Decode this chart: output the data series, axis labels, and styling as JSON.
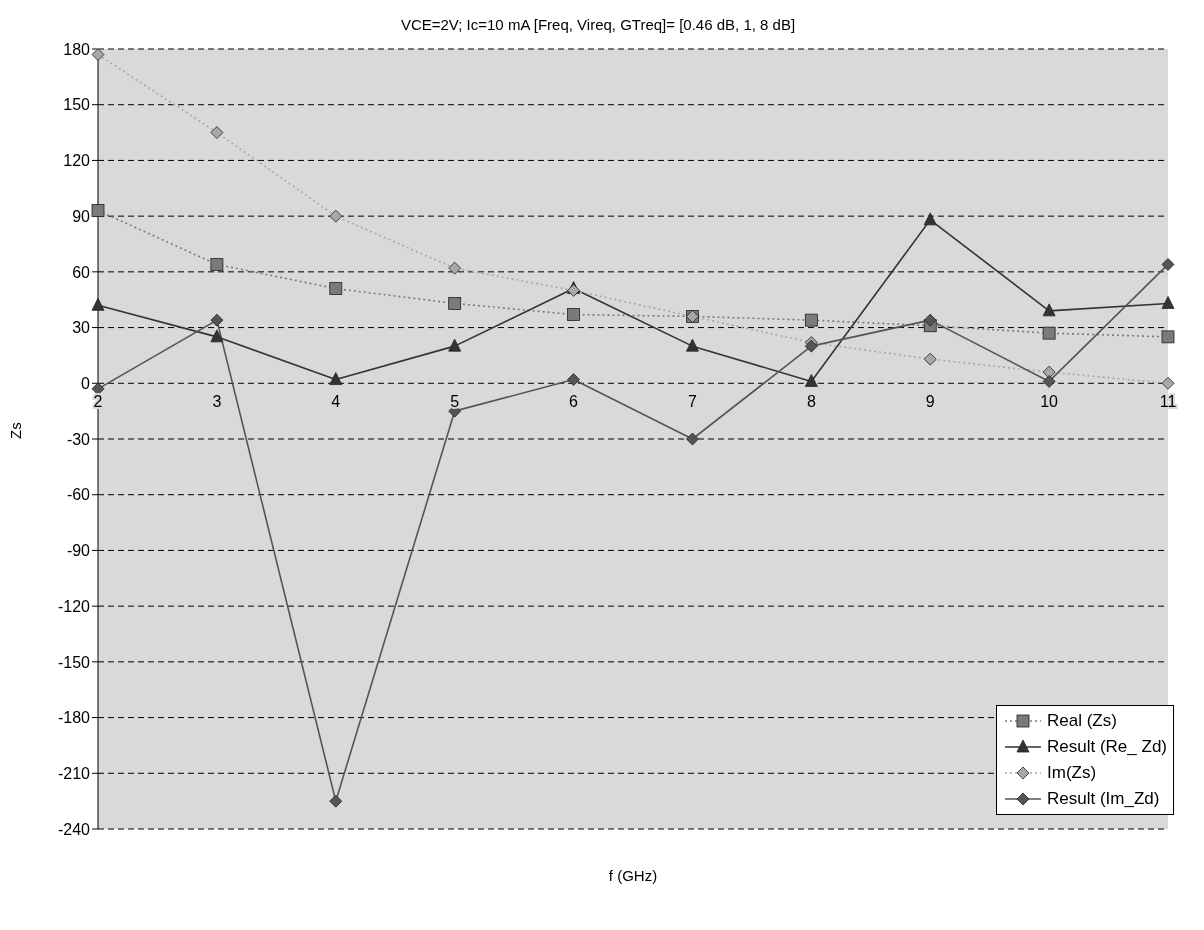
{
  "chart_data": {
    "type": "line",
    "title": "VCE=2V; Ic=10 mA [Freq, Vireq, GTreq]= [0.46 dB, 1, 8 dB]",
    "xlabel": "f (GHz)",
    "ylabel": "Zs",
    "categories": [
      "2",
      "3",
      "4",
      "5",
      "6",
      "7",
      "8",
      "9",
      "10",
      "11"
    ],
    "series": [
      {
        "name": "Real (Zs)",
        "color": "#7a7a7a",
        "marker": "square",
        "line_style": "dotted",
        "values": [
          93,
          64,
          51,
          43,
          37,
          36,
          34,
          31,
          27,
          25
        ]
      },
      {
        "name": "Result (Re_ Zd)",
        "color": "#333333",
        "marker": "triangle",
        "line_style": "solid",
        "values": [
          42,
          25,
          2,
          20,
          51,
          20,
          1,
          88,
          39,
          43
        ]
      },
      {
        "name": "Im(Zs)",
        "color": "#a8a8a8",
        "marker": "diamond",
        "line_style": "dotted",
        "values": [
          177,
          135,
          90,
          62,
          50,
          36,
          22,
          13,
          6,
          0
        ]
      },
      {
        "name": "Result (Im_Zd)",
        "color": "#555555",
        "marker": "diamond",
        "line_style": "solid",
        "values": [
          -3,
          34,
          -225,
          -15,
          2,
          -30,
          20,
          34,
          1,
          64
        ]
      }
    ],
    "ylim": [
      -240,
      180
    ],
    "yticks": [
      -240,
      -210,
      -180,
      -150,
      -120,
      -90,
      -60,
      -30,
      0,
      30,
      60,
      90,
      120,
      150,
      180
    ],
    "grid": "y",
    "legend": "bottom right"
  }
}
